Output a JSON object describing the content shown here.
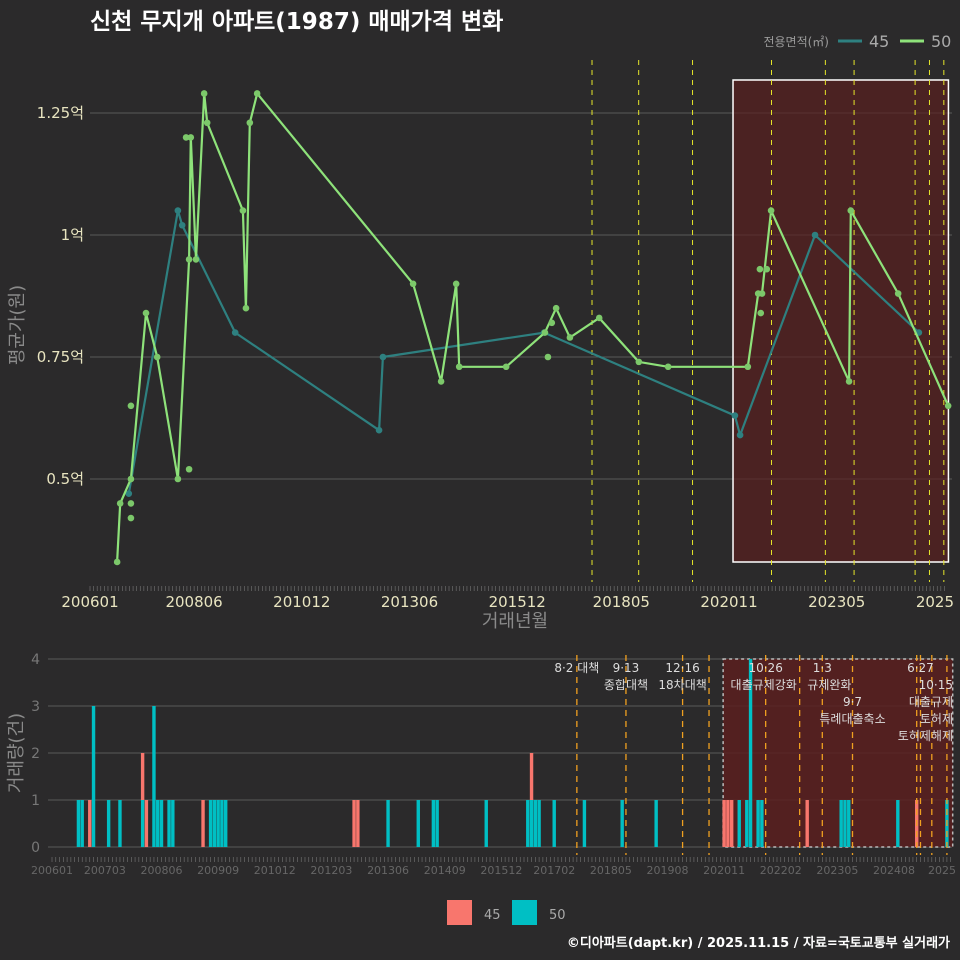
{
  "title": "신천 무지개 아파트(1987) 매매가격 변화",
  "footer": "©디아파트(dapt.kr) / 2025.11.15 / 자료=국토교통부 실거래가",
  "colors": {
    "bg": "#2b2a2b",
    "s45_line": "#2e8080",
    "s50_line": "#8ee27a",
    "bar45": "#f8766d",
    "bar50": "#00bfc4",
    "policy_top": "#e6e62a",
    "policy_bottom": "#f0a020",
    "highlight": "#5a1f1f"
  },
  "chart_data": [
    {
      "type": "line",
      "title": "신천 무지개 아파트(1987) 매매가격 변화",
      "xlabel": "거래년월",
      "ylabel": "평균가(원)",
      "ylim": [
        0.3,
        1.36
      ],
      "xlim": [
        2006.0,
        2025.92
      ],
      "yticks": [
        {
          "v": 1.25,
          "label": "1.25억"
        },
        {
          "v": 1.0,
          "label": "1억"
        },
        {
          "v": 0.75,
          "label": "0.75억"
        },
        {
          "v": 0.5,
          "label": "0.5억"
        }
      ],
      "xticks": [
        "200601",
        "200806",
        "201012",
        "201306",
        "201512",
        "201805",
        "202011",
        "202305",
        "2025"
      ],
      "legend": {
        "title": "전용면적(㎡)",
        "position": "top-right",
        "entries": [
          "45",
          "50"
        ]
      },
      "series": [
        {
          "name": "45",
          "points": [
            [
              2006.9,
              0.47
            ],
            [
              2008.04,
              1.05
            ],
            [
              2008.14,
              1.02
            ],
            [
              2009.37,
              0.8
            ],
            [
              2012.71,
              0.6
            ],
            [
              2012.8,
              0.75
            ],
            [
              2016.54,
              0.8
            ],
            [
              2020.97,
              0.63
            ],
            [
              2021.09,
              0.59
            ],
            [
              2022.83,
              1.0
            ],
            [
              2025.24,
              0.8
            ]
          ]
        },
        {
          "name": "50",
          "points": [
            [
              2006.63,
              0.33
            ],
            [
              2006.7,
              0.45
            ],
            [
              2006.95,
              0.5
            ],
            [
              2007.3,
              0.84
            ],
            [
              2007.56,
              0.75
            ],
            [
              2008.04,
              0.5
            ],
            [
              2008.3,
              0.95
            ],
            [
              2008.34,
              1.2
            ],
            [
              2008.46,
              0.95
            ],
            [
              2008.65,
              1.29
            ],
            [
              2008.72,
              1.23
            ],
            [
              2009.55,
              1.05
            ],
            [
              2009.62,
              0.85
            ],
            [
              2009.71,
              1.23
            ],
            [
              2009.88,
              1.29
            ],
            [
              2013.5,
              0.9
            ],
            [
              2014.15,
              0.7
            ],
            [
              2014.5,
              0.9
            ],
            [
              2014.57,
              0.73
            ],
            [
              2015.66,
              0.73
            ],
            [
              2016.56,
              0.8
            ],
            [
              2016.82,
              0.85
            ],
            [
              2017.14,
              0.79
            ],
            [
              2017.82,
              0.83
            ],
            [
              2018.74,
              0.74
            ],
            [
              2019.42,
              0.73
            ],
            [
              2021.27,
              0.73
            ],
            [
              2021.51,
              0.88
            ],
            [
              2021.6,
              0.88
            ],
            [
              2021.81,
              1.05
            ],
            [
              2023.62,
              0.7
            ],
            [
              2023.66,
              1.05
            ],
            [
              2024.76,
              0.88
            ],
            [
              2025.92,
              0.65
            ]
          ],
          "extra_points": [
            [
              2006.95,
              0.65
            ],
            [
              2006.95,
              0.45
            ],
            [
              2006.95,
              0.42
            ],
            [
              2008.3,
              0.52
            ],
            [
              2008.23,
              1.2
            ],
            [
              2016.63,
              0.75
            ],
            [
              2016.72,
              0.82
            ],
            [
              2021.55,
              0.93
            ],
            [
              2021.57,
              0.84
            ],
            [
              2021.71,
              0.93
            ]
          ]
        }
      ],
      "policy_months": [
        "201708",
        "201809",
        "201912",
        "202110",
        "202301",
        "202309",
        "202502",
        "202506",
        "202510"
      ],
      "highlight": {
        "start": "202011",
        "end": "202511"
      }
    },
    {
      "type": "bar",
      "xlabel": "",
      "ylabel": "거래량(건)",
      "ylim": [
        0,
        4
      ],
      "yticks": [
        "0",
        "1",
        "2",
        "3",
        "4"
      ],
      "xticks": [
        "200601",
        "200703",
        "200806",
        "200909",
        "201012",
        "201203",
        "201306",
        "201409",
        "201512",
        "201702",
        "201805",
        "201908",
        "202011",
        "202202",
        "202305",
        "202408",
        "2025"
      ],
      "legend": {
        "position": "bottom",
        "entries": [
          "45",
          "50"
        ]
      },
      "bars_columns": [
        "month",
        "count_45",
        "count_50"
      ],
      "bars": [
        [
          "200608",
          0,
          1
        ],
        [
          "200609",
          0,
          1
        ],
        [
          "200611",
          1,
          0
        ],
        [
          "200612",
          0,
          3
        ],
        [
          "200704",
          0,
          1
        ],
        [
          "200707",
          0,
          1
        ],
        [
          "200801",
          1,
          1
        ],
        [
          "200802",
          1,
          0
        ],
        [
          "200804",
          0,
          3
        ],
        [
          "200805",
          0,
          1
        ],
        [
          "200806",
          0,
          1
        ],
        [
          "200808",
          0,
          1
        ],
        [
          "200809",
          0,
          1
        ],
        [
          "200905",
          1,
          0
        ],
        [
          "200907",
          0,
          1
        ],
        [
          "200908",
          0,
          1
        ],
        [
          "200909",
          0,
          1
        ],
        [
          "200910",
          0,
          1
        ],
        [
          "200911",
          0,
          1
        ],
        [
          "201209",
          1,
          0
        ],
        [
          "201210",
          1,
          0
        ],
        [
          "201306",
          0,
          1
        ],
        [
          "201402",
          0,
          1
        ],
        [
          "201406",
          0,
          1
        ],
        [
          "201407",
          0,
          1
        ],
        [
          "201508",
          0,
          1
        ],
        [
          "201607",
          0,
          1
        ],
        [
          "201608",
          1,
          1
        ],
        [
          "201609",
          0,
          1
        ],
        [
          "201610",
          0,
          1
        ],
        [
          "201702",
          0,
          1
        ],
        [
          "201710",
          0,
          1
        ],
        [
          "201808",
          0,
          1
        ],
        [
          "201905",
          0,
          1
        ],
        [
          "202011",
          1,
          0
        ],
        [
          "202012",
          1,
          0
        ],
        [
          "202101",
          1,
          0
        ],
        [
          "202103",
          0,
          1
        ],
        [
          "202105",
          0,
          1
        ],
        [
          "202106",
          0,
          4
        ],
        [
          "202108",
          0,
          1
        ],
        [
          "202109",
          0,
          1
        ],
        [
          "202209",
          1,
          0
        ],
        [
          "202306",
          0,
          1
        ],
        [
          "202307",
          0,
          1
        ],
        [
          "202308",
          0,
          1
        ],
        [
          "202409",
          0,
          1
        ],
        [
          "202502",
          1,
          0
        ],
        [
          "202510",
          0,
          1
        ]
      ],
      "events": [
        {
          "month": "201708",
          "num": "",
          "text": "8·2 대책"
        },
        {
          "month": "201809",
          "num": "9·13",
          "text": "종합대책"
        },
        {
          "month": "201912",
          "num": "12·16",
          "text": "18차대책"
        },
        {
          "month": "202007",
          "num": "",
          "text": ""
        },
        {
          "month": "202110",
          "num": "10·26",
          "text": "대출규제강화"
        },
        {
          "month": "202207",
          "num": "",
          "text": ""
        },
        {
          "month": "202301",
          "num": "1·3",
          "text": "규제완화"
        },
        {
          "month": "202309",
          "num": "9·7",
          "text": "특례대출축소"
        },
        {
          "month": "202502",
          "num": "",
          "text": "토허제해제"
        },
        {
          "month": "202503",
          "num": "",
          "text": ""
        },
        {
          "month": "202506",
          "num": "6·27",
          "text": "대출규제"
        },
        {
          "month": "202510",
          "num": "10·15",
          "text": "토허제"
        }
      ],
      "highlight": {
        "start": "202011",
        "end": "202511"
      }
    }
  ]
}
